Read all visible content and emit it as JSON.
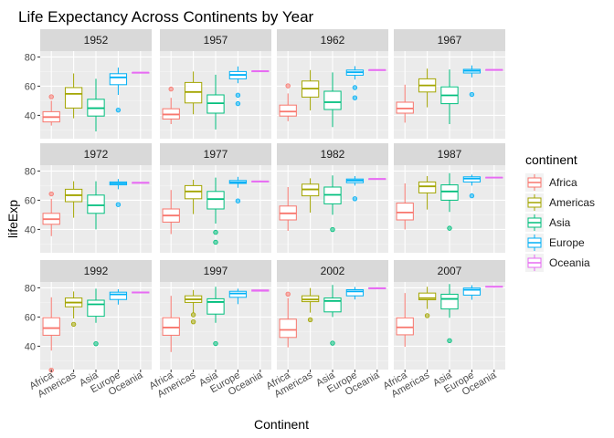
{
  "chart_data": {
    "type": "boxplot",
    "title": "Life Expectancy Across Continents by Year",
    "xlabel": "Continent",
    "ylabel": "lifeExp",
    "categories": [
      "Africa",
      "Americas",
      "Asia",
      "Europe",
      "Oceania"
    ],
    "y_ticks": [
      "40",
      "60",
      "80"
    ],
    "ylim": [
      24,
      84
    ],
    "facet_layout": "3x4",
    "grid": true,
    "legend": {
      "title": "continent",
      "placement": "right",
      "entries": [
        "Africa",
        "Americas",
        "Asia",
        "Europe",
        "Oceania"
      ]
    },
    "colors": {
      "Africa": "#F8766D",
      "Americas": "#A3A500",
      "Asia": "#00BF7D",
      "Europe": "#00B0F6",
      "Oceania": "#E76BF3"
    },
    "panels": [
      {
        "year": "1952",
        "boxes": [
          {
            "continent": "Africa",
            "min": 33,
            "q1": 35.5,
            "median": 38.8,
            "q3": 42.5,
            "max": 50,
            "outliers": [
              52.7
            ]
          },
          {
            "continent": "Americas",
            "min": 38,
            "q1": 45,
            "median": 54.7,
            "q3": 59,
            "max": 68.7,
            "outliers": []
          },
          {
            "continent": "Asia",
            "min": 29,
            "q1": 39.5,
            "median": 44.9,
            "q3": 51,
            "max": 65,
            "outliers": []
          },
          {
            "continent": "Europe",
            "min": 54,
            "q1": 61,
            "median": 66,
            "q3": 68.5,
            "max": 72.7,
            "outliers": [
              43.6
            ]
          },
          {
            "continent": "Oceania",
            "min": 69.1,
            "q1": 69.2,
            "median": 69.3,
            "q3": 69.4,
            "max": 69.4,
            "outliers": []
          }
        ]
      },
      {
        "year": "1957",
        "boxes": [
          {
            "continent": "Africa",
            "min": 34,
            "q1": 37.5,
            "median": 40.6,
            "q3": 44.5,
            "max": 52,
            "outliers": [
              58
            ]
          },
          {
            "continent": "Americas",
            "min": 40.7,
            "q1": 48.5,
            "median": 56,
            "q3": 62.5,
            "max": 70,
            "outliers": []
          },
          {
            "continent": "Asia",
            "min": 30.3,
            "q1": 41.5,
            "median": 48.3,
            "q3": 54,
            "max": 67.8,
            "outliers": []
          },
          {
            "continent": "Europe",
            "min": 62,
            "q1": 65,
            "median": 67.7,
            "q3": 70,
            "max": 73.5,
            "outliers": [
              53.8,
              48
            ]
          },
          {
            "continent": "Oceania",
            "min": 70.2,
            "q1": 70.3,
            "median": 70.3,
            "q3": 70.4,
            "max": 70.5,
            "outliers": []
          }
        ]
      },
      {
        "year": "1962",
        "boxes": [
          {
            "continent": "Africa",
            "min": 36,
            "q1": 39.5,
            "median": 42.6,
            "q3": 47,
            "max": 55,
            "outliers": [
              60.2
            ]
          },
          {
            "continent": "Americas",
            "min": 43.4,
            "q1": 52.5,
            "median": 58.3,
            "q3": 63.5,
            "max": 71,
            "outliers": []
          },
          {
            "continent": "Asia",
            "min": 32,
            "q1": 44,
            "median": 49,
            "q3": 56.5,
            "max": 69.4,
            "outliers": []
          },
          {
            "continent": "Europe",
            "min": 64.5,
            "q1": 67.5,
            "median": 69.5,
            "q3": 71,
            "max": 73.7,
            "outliers": [
              59,
              52
            ]
          },
          {
            "continent": "Oceania",
            "min": 70.9,
            "q1": 71,
            "median": 71.1,
            "q3": 71.2,
            "max": 71.2,
            "outliers": []
          }
        ]
      },
      {
        "year": "1967",
        "boxes": [
          {
            "continent": "Africa",
            "min": 35,
            "q1": 41.5,
            "median": 44.7,
            "q3": 49,
            "max": 61,
            "outliers": []
          },
          {
            "continent": "Americas",
            "min": 45.5,
            "q1": 56,
            "median": 60.5,
            "q3": 65,
            "max": 72,
            "outliers": []
          },
          {
            "continent": "Asia",
            "min": 34,
            "q1": 48,
            "median": 53.7,
            "q3": 59.5,
            "max": 71.4,
            "outliers": []
          },
          {
            "continent": "Europe",
            "min": 66,
            "q1": 69,
            "median": 70.5,
            "q3": 71.5,
            "max": 74.2,
            "outliers": [
              54.3
            ]
          },
          {
            "continent": "Oceania",
            "min": 71,
            "q1": 71.1,
            "median": 71.2,
            "q3": 71.3,
            "max": 71.5,
            "outliers": []
          }
        ]
      },
      {
        "year": "1972",
        "boxes": [
          {
            "continent": "Africa",
            "min": 35.4,
            "q1": 43.5,
            "median": 47,
            "q3": 51,
            "max": 61,
            "outliers": [
              64.3
            ]
          },
          {
            "continent": "Americas",
            "min": 48,
            "q1": 59,
            "median": 63.4,
            "q3": 67.5,
            "max": 73,
            "outliers": []
          },
          {
            "continent": "Asia",
            "min": 40,
            "q1": 51,
            "median": 56.5,
            "q3": 63.5,
            "max": 73,
            "outliers": []
          },
          {
            "continent": "Europe",
            "min": 67.5,
            "q1": 70.5,
            "median": 71.5,
            "q3": 72.5,
            "max": 74.5,
            "outliers": [
              57
            ]
          },
          {
            "continent": "Oceania",
            "min": 71.8,
            "q1": 71.9,
            "median": 72,
            "q3": 72.1,
            "max": 72.2,
            "outliers": []
          }
        ]
      },
      {
        "year": "1977",
        "boxes": [
          {
            "continent": "Africa",
            "min": 36.8,
            "q1": 45,
            "median": 49.5,
            "q3": 54,
            "max": 67,
            "outliers": []
          },
          {
            "continent": "Americas",
            "min": 50.5,
            "q1": 61,
            "median": 66,
            "q3": 70,
            "max": 74,
            "outliers": []
          },
          {
            "continent": "Asia",
            "min": 44,
            "q1": 54,
            "median": 60.8,
            "q3": 66,
            "max": 75.5,
            "outliers": [
              38,
              31.2
            ]
          },
          {
            "continent": "Europe",
            "min": 68.5,
            "q1": 71.5,
            "median": 72.3,
            "q3": 73.5,
            "max": 76,
            "outliers": [
              59.5
            ]
          },
          {
            "continent": "Oceania",
            "min": 72.5,
            "q1": 72.6,
            "median": 72.9,
            "q3": 73,
            "max": 73.5,
            "outliers": []
          }
        ]
      },
      {
        "year": "1982",
        "boxes": [
          {
            "continent": "Africa",
            "min": 39,
            "q1": 46.5,
            "median": 51,
            "q3": 56,
            "max": 69,
            "outliers": []
          },
          {
            "continent": "Americas",
            "min": 51.5,
            "q1": 63,
            "median": 67.4,
            "q3": 71,
            "max": 75,
            "outliers": []
          },
          {
            "continent": "Asia",
            "min": 50,
            "q1": 57.5,
            "median": 63.7,
            "q3": 69,
            "max": 77,
            "outliers": [
              39.9
            ]
          },
          {
            "continent": "Europe",
            "min": 70,
            "q1": 72,
            "median": 73.5,
            "q3": 74.5,
            "max": 76.5,
            "outliers": [
              61
            ]
          },
          {
            "continent": "Oceania",
            "min": 74.3,
            "q1": 74.4,
            "median": 74.6,
            "q3": 74.7,
            "max": 74.8,
            "outliers": []
          }
        ]
      },
      {
        "year": "1987",
        "boxes": [
          {
            "continent": "Africa",
            "min": 40,
            "q1": 46.5,
            "median": 51.6,
            "q3": 58,
            "max": 71.5,
            "outliers": []
          },
          {
            "continent": "Americas",
            "min": 53.6,
            "q1": 65,
            "median": 69.5,
            "q3": 72.5,
            "max": 76.5,
            "outliers": []
          },
          {
            "continent": "Asia",
            "min": 52,
            "q1": 60,
            "median": 66,
            "q3": 70.5,
            "max": 78.5,
            "outliers": [
              40.8
            ]
          },
          {
            "continent": "Europe",
            "min": 70,
            "q1": 72.5,
            "median": 74.8,
            "q3": 76,
            "max": 77.5,
            "outliers": [
              63
            ]
          },
          {
            "continent": "Oceania",
            "min": 75,
            "q1": 75.2,
            "median": 75.5,
            "q3": 75.7,
            "max": 75.8,
            "outliers": []
          }
        ]
      },
      {
        "year": "1992",
        "boxes": [
          {
            "continent": "Africa",
            "min": 37,
            "q1": 47.5,
            "median": 52.4,
            "q3": 59.5,
            "max": 73.5,
            "outliers": [
              23.6
            ]
          },
          {
            "continent": "Americas",
            "min": 59,
            "q1": 67,
            "median": 69.9,
            "q3": 73,
            "max": 77.5,
            "outliers": [
              55
            ]
          },
          {
            "continent": "Asia",
            "min": 56,
            "q1": 60.5,
            "median": 68.7,
            "q3": 71.5,
            "max": 79.4,
            "outliers": [
              41.7
            ]
          },
          {
            "continent": "Europe",
            "min": 68.5,
            "q1": 72,
            "median": 75.5,
            "q3": 77,
            "max": 79,
            "outliers": []
          },
          {
            "continent": "Oceania",
            "min": 76.3,
            "q1": 76.5,
            "median": 76.9,
            "q3": 77.1,
            "max": 77.3,
            "outliers": []
          }
        ]
      },
      {
        "year": "1997",
        "boxes": [
          {
            "continent": "Africa",
            "min": 36,
            "q1": 47.5,
            "median": 52.8,
            "q3": 59.5,
            "max": 74.5,
            "outliers": []
          },
          {
            "continent": "Americas",
            "min": 63,
            "q1": 70,
            "median": 72.1,
            "q3": 74.5,
            "max": 78.5,
            "outliers": [
              56.7,
              61.5
            ]
          },
          {
            "continent": "Asia",
            "min": 56,
            "q1": 62,
            "median": 70.3,
            "q3": 72.5,
            "max": 80.7,
            "outliers": [
              41.8
            ]
          },
          {
            "continent": "Europe",
            "min": 68.8,
            "q1": 73.5,
            "median": 76.1,
            "q3": 77.6,
            "max": 79.4,
            "outliers": []
          },
          {
            "continent": "Oceania",
            "min": 77.5,
            "q1": 77.7,
            "median": 78.2,
            "q3": 78.5,
            "max": 78.8,
            "outliers": []
          }
        ]
      },
      {
        "year": "2002",
        "boxes": [
          {
            "continent": "Africa",
            "min": 39.2,
            "q1": 46,
            "median": 51.2,
            "q3": 58.5,
            "max": 73,
            "outliers": [
              75.7
            ]
          },
          {
            "continent": "Americas",
            "min": 63,
            "q1": 70.5,
            "median": 72,
            "q3": 74.5,
            "max": 79.8,
            "outliers": [
              58.1
            ]
          },
          {
            "continent": "Asia",
            "min": 60,
            "q1": 63.5,
            "median": 71,
            "q3": 73,
            "max": 82,
            "outliers": [
              42.1
            ]
          },
          {
            "continent": "Europe",
            "min": 72,
            "q1": 74.5,
            "median": 77.5,
            "q3": 78.7,
            "max": 80.6,
            "outliers": []
          },
          {
            "continent": "Oceania",
            "min": 79.1,
            "q1": 79.3,
            "median": 79.7,
            "q3": 80,
            "max": 80.4,
            "outliers": []
          }
        ]
      },
      {
        "year": "2007",
        "boxes": [
          {
            "continent": "Africa",
            "min": 39.6,
            "q1": 47.8,
            "median": 52.9,
            "q3": 59.4,
            "max": 76.4,
            "outliers": []
          },
          {
            "continent": "Americas",
            "min": 65.5,
            "q1": 71.8,
            "median": 72.9,
            "q3": 76.4,
            "max": 80.7,
            "outliers": [
              60.9
            ]
          },
          {
            "continent": "Asia",
            "min": 59.5,
            "q1": 65.5,
            "median": 72.4,
            "q3": 75.6,
            "max": 82.6,
            "outliers": [
              43.8
            ]
          },
          {
            "continent": "Europe",
            "min": 71.8,
            "q1": 75,
            "median": 78.6,
            "q3": 79.8,
            "max": 81.8,
            "outliers": []
          },
          {
            "continent": "Oceania",
            "min": 80.2,
            "q1": 80.5,
            "median": 80.7,
            "q3": 81,
            "max": 81.2,
            "outliers": []
          }
        ]
      }
    ]
  }
}
